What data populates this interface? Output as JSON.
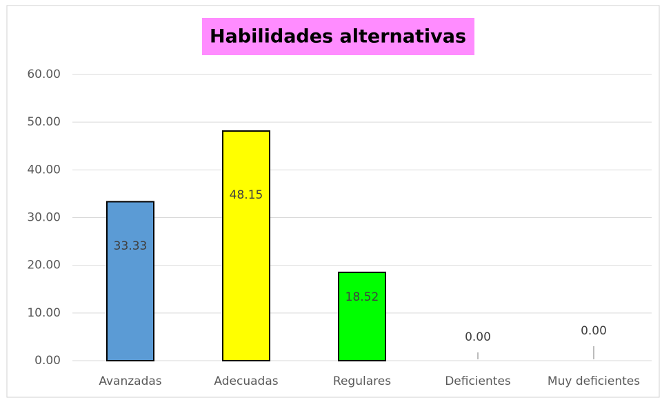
{
  "chart_data": {
    "type": "bar",
    "title": "Habilidades alternativas",
    "categories": [
      "Avanzadas",
      "Adecuadas",
      "Regulares",
      "Deficientes",
      "Muy deficientes"
    ],
    "values": [
      33.33,
      48.15,
      18.52,
      0,
      0
    ],
    "value_labels": [
      "33.33",
      "48.15",
      "18.52",
      "0.00",
      "0.00"
    ],
    "colors": [
      "#5b9bd5",
      "#ffff00",
      "#00ff00"
    ],
    "ylim": [
      0,
      60
    ],
    "yticks": [
      {
        "value": 0,
        "label": "0.00"
      },
      {
        "value": 10,
        "label": "10.00"
      },
      {
        "value": 20,
        "label": "20.00"
      },
      {
        "value": 30,
        "label": "30.00"
      },
      {
        "value": 40,
        "label": "40.00"
      },
      {
        "value": 50,
        "label": "50.00"
      },
      {
        "value": 60,
        "label": "60.00"
      }
    ],
    "grid": true
  }
}
